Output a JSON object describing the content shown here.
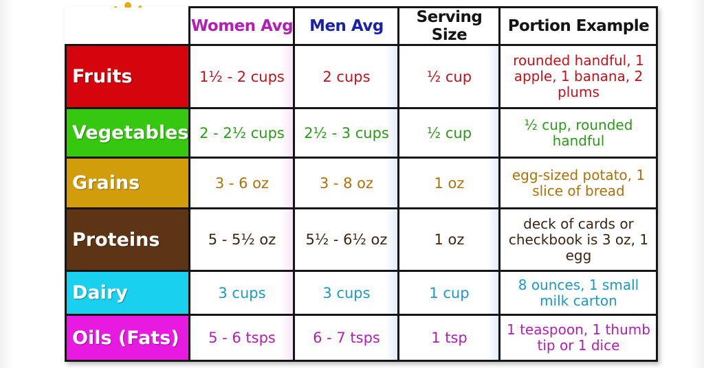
{
  "logo": {
    "icon": "nutrition-figure-logo",
    "color": "#e6ad12"
  },
  "headers": {
    "women": "Women Avg",
    "men": "Men Avg",
    "serving": "Serving Size",
    "portion": "Portion Example"
  },
  "rows": [
    {
      "category": "Fruits",
      "women": "1½ - 2 cups",
      "men": "2 cups",
      "serving": "½ cup",
      "portion": "rounded handful, 1 apple, 1 banana, 2 plums",
      "bg": "#d4050c",
      "text": "#c1121b"
    },
    {
      "category": "Vegetables",
      "women": "2 - 2½ cups",
      "men": "2½ - 3 cups",
      "serving": "½ cup",
      "portion": "½ cup, rounded handful",
      "bg": "#35c80e",
      "text": "#2a9a18"
    },
    {
      "category": "Grains",
      "women": "3 - 6 oz",
      "men": "3 - 8 oz",
      "serving": "1 oz",
      "portion": "egg-sized potato, 1 slice of bread",
      "bg": "#d19d0a",
      "text": "#a9720b"
    },
    {
      "category": "Proteins",
      "women": "5 - 5½ oz",
      "men": "5½ - 6½ oz",
      "serving": "1 oz",
      "portion": "deck of cards or checkbook is 3 oz, 1 egg",
      "bg": "#5e3514",
      "text": "#3c2513"
    },
    {
      "category": "Dairy",
      "women": "3 cups",
      "men": "3 cups",
      "serving": "1 cup",
      "portion": "8 ounces, 1 small milk carton",
      "bg": "#19d1ee",
      "text": "#1d98bf"
    },
    {
      "category": "Oils (Fats)",
      "women": "5 - 6 tsps",
      "men": "6 - 7 tsps",
      "serving": "1 tsp",
      "portion": "1 teaspoon, 1 thumb tip or 1 dice",
      "bg": "#e81ae1",
      "text": "#b11fb0"
    }
  ]
}
